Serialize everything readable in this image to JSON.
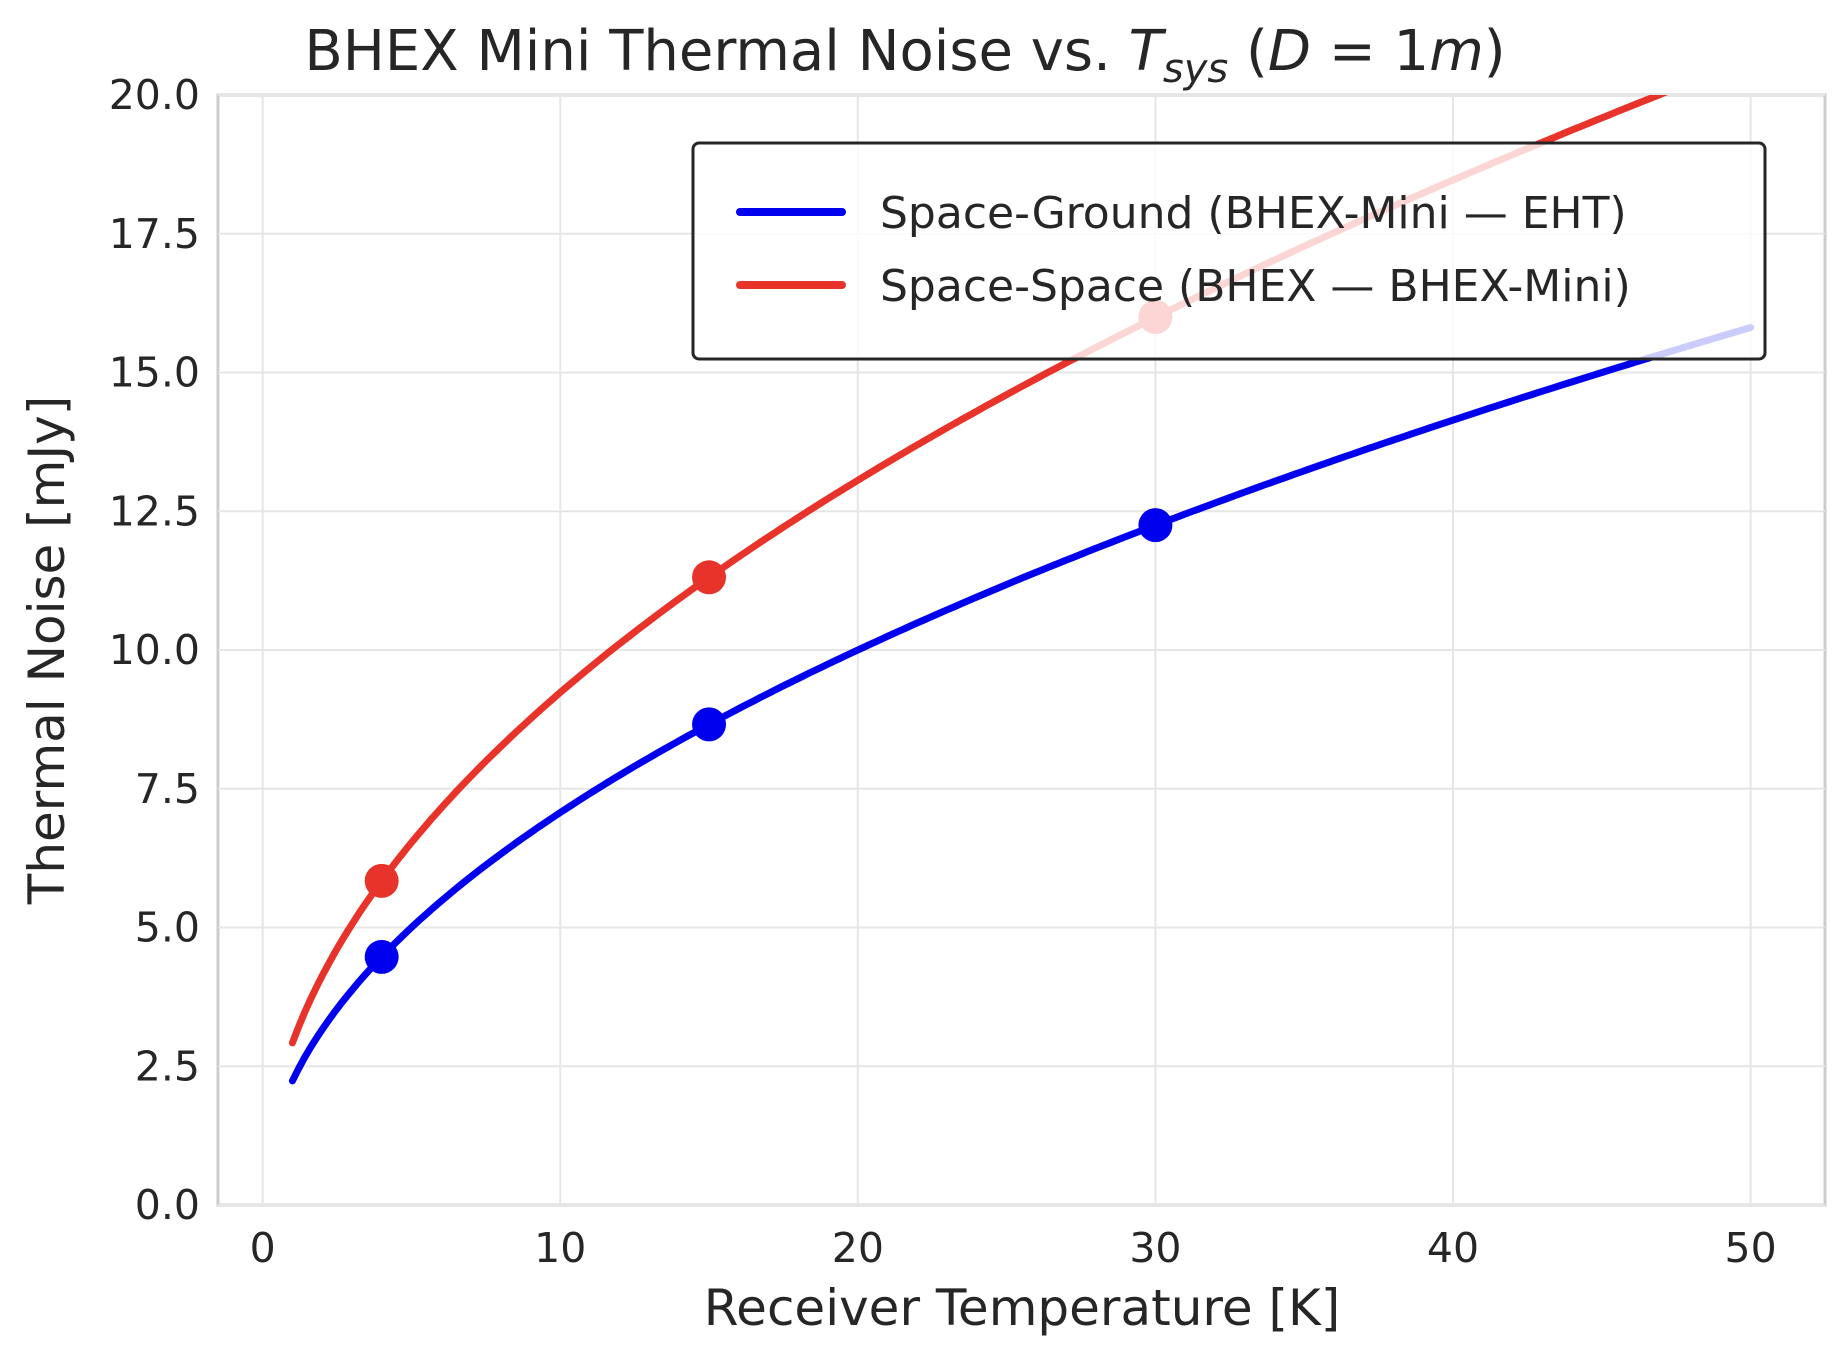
{
  "chart_data": {
    "type": "line",
    "title": {
      "main": "BHEX Mini Thermal Noise vs. ",
      "t_symbol": "T",
      "t_subscript": "sys",
      "paren_open": " (",
      "d_symbol": "D",
      "equals": " = 1",
      "unit_symbol": "m",
      "paren_close": ")"
    },
    "xlabel": "Receiver Temperature [K]",
    "ylabel": "Thermal Noise [mJy]",
    "xlim": [
      -1.5,
      52.5
    ],
    "ylim": [
      0,
      20
    ],
    "xticks": [
      0,
      10,
      20,
      30,
      40,
      50
    ],
    "yticks": [
      0.0,
      2.5,
      5.0,
      7.5,
      10.0,
      12.5,
      15.0,
      17.5,
      20.0
    ],
    "xtick_labels": [
      "0",
      "10",
      "20",
      "30",
      "40",
      "50"
    ],
    "ytick_labels": [
      "0.0",
      "2.5",
      "5.0",
      "7.5",
      "10.0",
      "12.5",
      "15.0",
      "17.5",
      "20.0"
    ],
    "grid": true,
    "legend_position": "upper right",
    "x_range": [
      1,
      50
    ],
    "series": [
      {
        "name": "Space-Ground (BHEX-Mini — EHT)",
        "color": "#0000ee",
        "model": "sqrt",
        "coefficient": 2.236,
        "markers": [
          {
            "x": 4,
            "y": 4.47
          },
          {
            "x": 15,
            "y": 8.66
          },
          {
            "x": 30,
            "y": 12.25
          }
        ]
      },
      {
        "name": "Space-Space (BHEX — BHEX-Mini)",
        "color": "#e8332a",
        "model": "sqrt",
        "coefficient": 2.92,
        "markers": [
          {
            "x": 4,
            "y": 5.84
          },
          {
            "x": 15,
            "y": 11.31
          },
          {
            "x": 30,
            "y": 16.0
          }
        ]
      }
    ]
  }
}
